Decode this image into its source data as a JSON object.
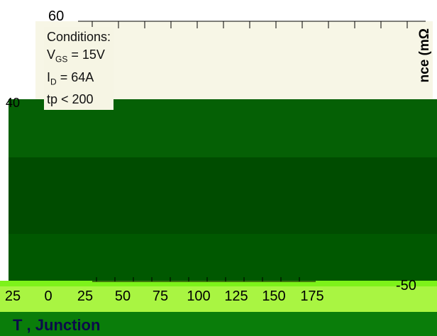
{
  "chart_data": {
    "type": "line",
    "xlabel": "T , Junction",
    "ylabel": "nce (mΩ",
    "x_ticks": [
      "25",
      "0",
      "25",
      "50",
      "75",
      "100",
      "125",
      "150",
      "175"
    ],
    "y_ticks_visible": [
      "60",
      "40"
    ],
    "extra_tick": "-50",
    "annotation": {
      "title": "Conditions:",
      "lines": [
        "V_GS = 15V",
        "I_D = 64A",
        "tp < 200"
      ]
    }
  },
  "colors": {
    "dark_green": "#056005",
    "mid_green": "#0a7d0a",
    "deep_green": "#004c00",
    "bright_green": "#7df21a",
    "lime": "#a9f542",
    "paper": "#f6f5e4"
  }
}
